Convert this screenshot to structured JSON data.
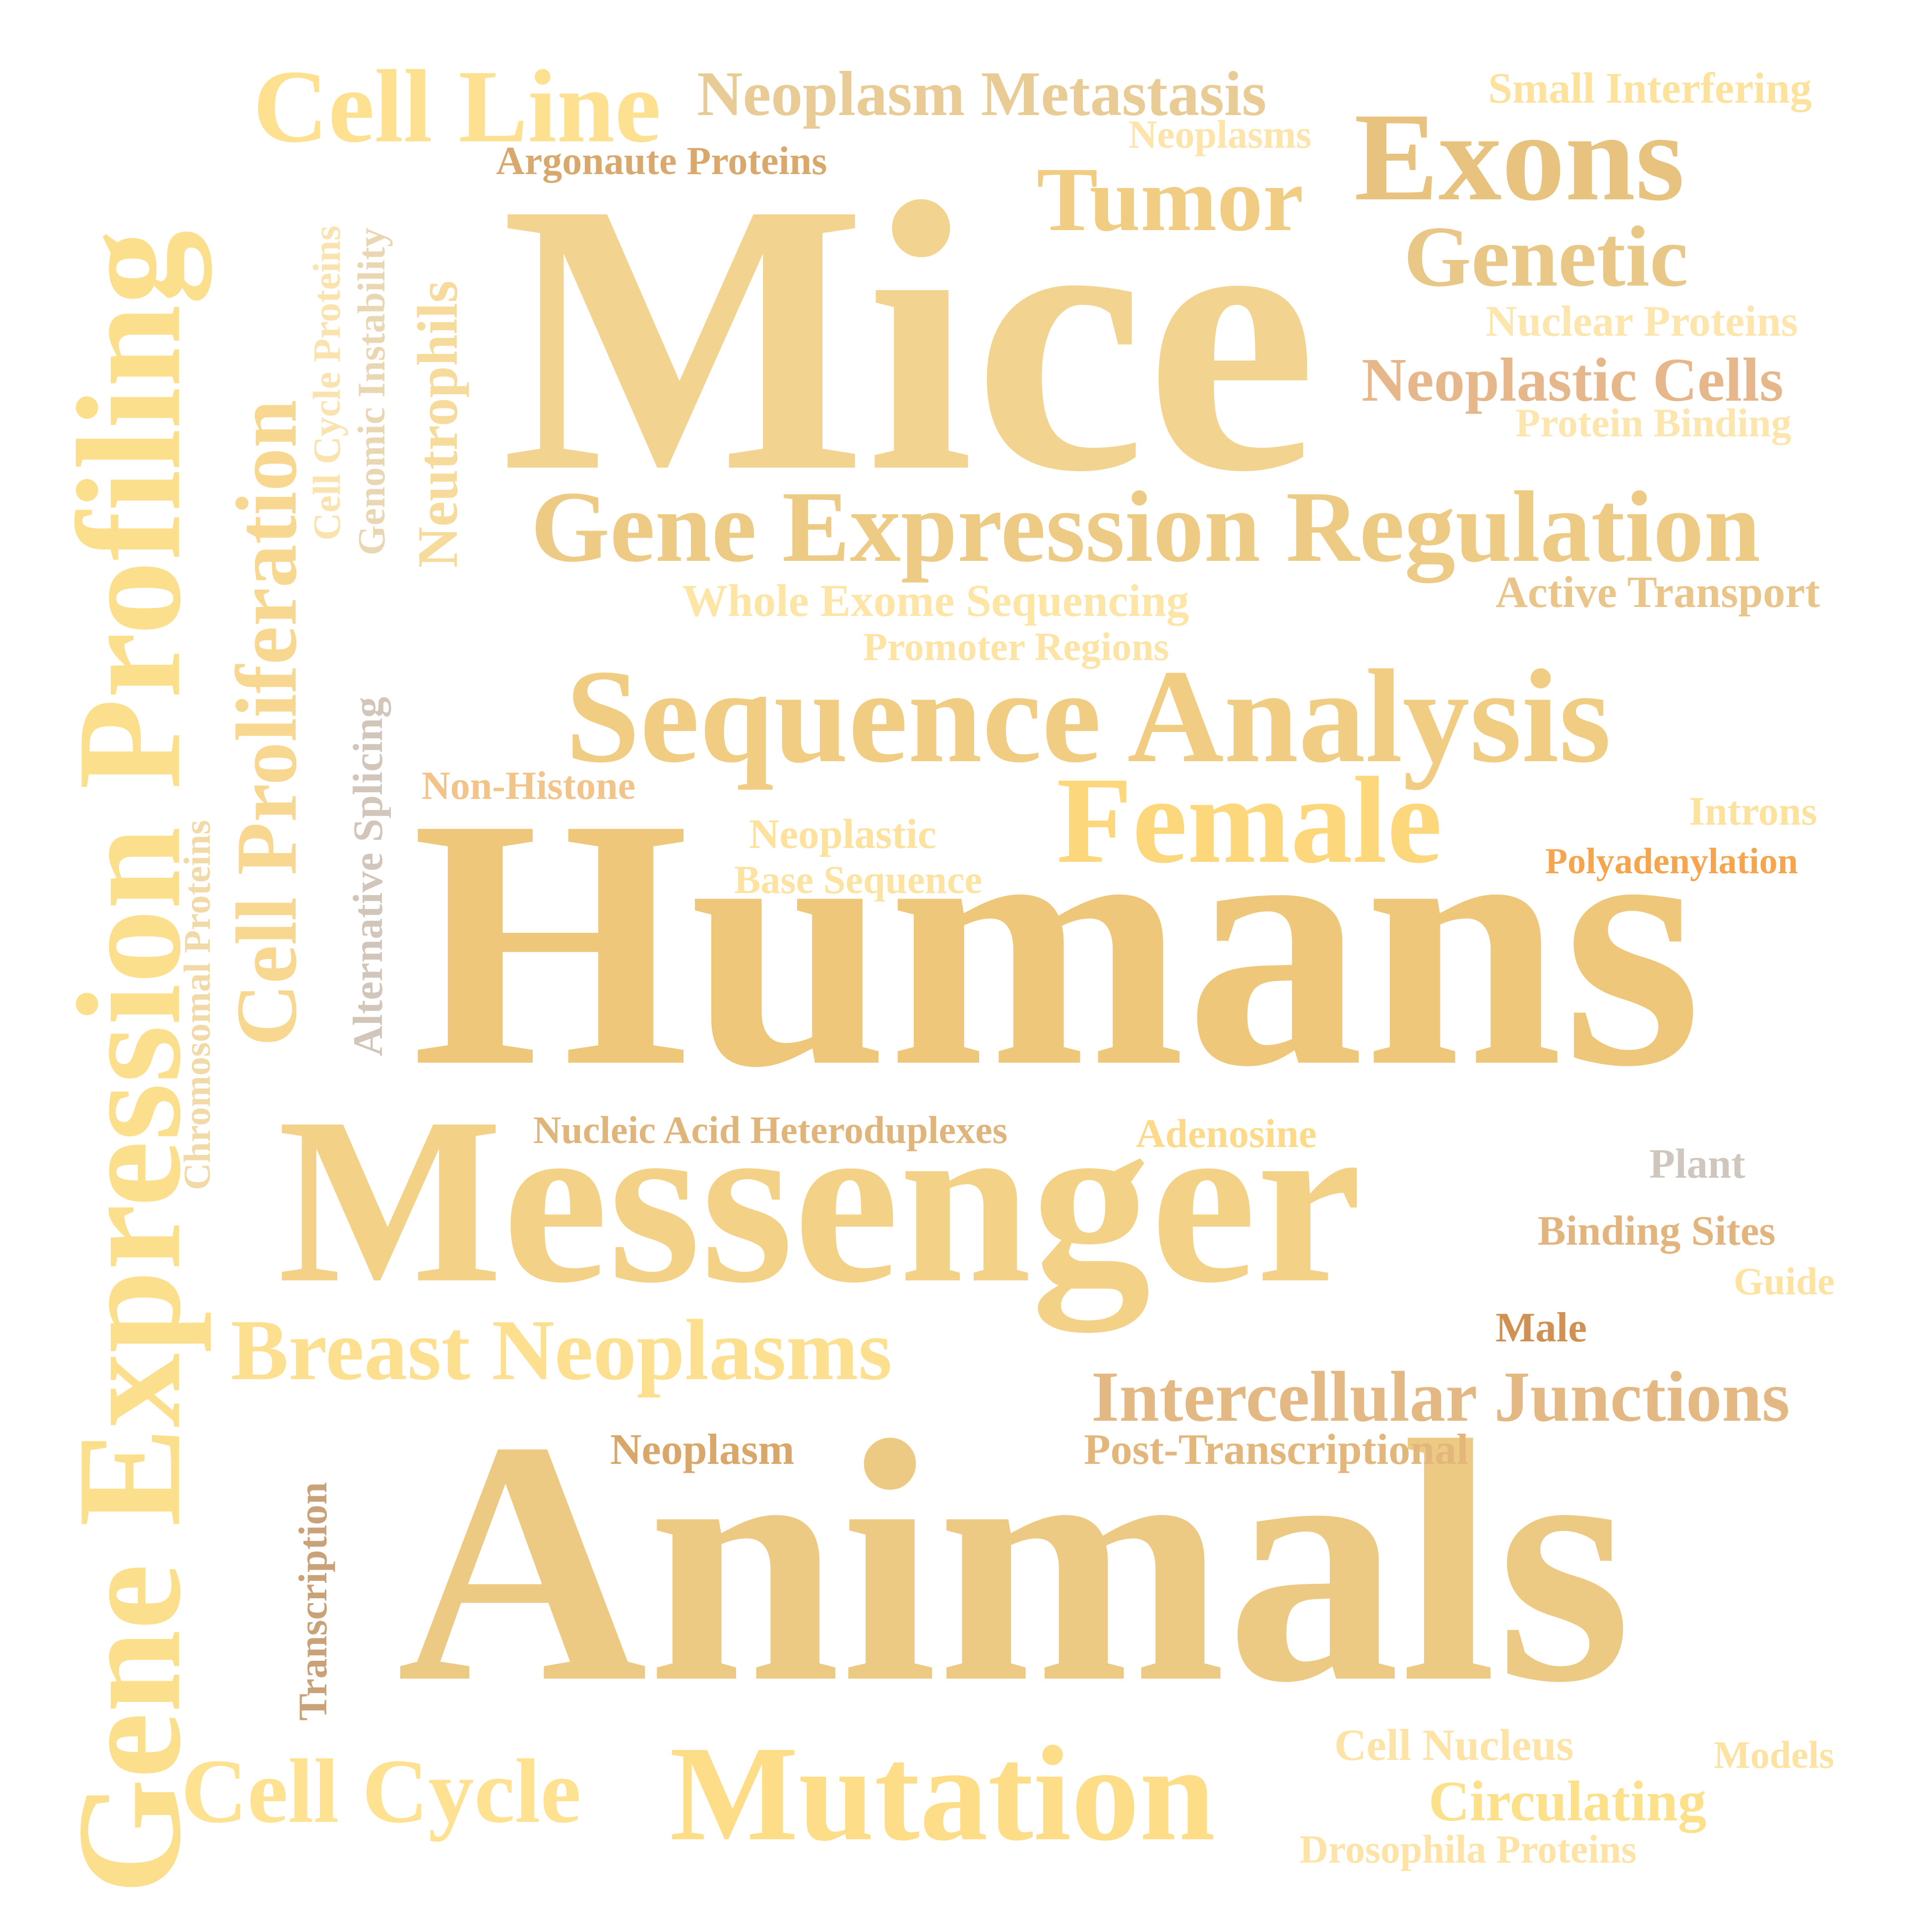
{
  "words": [
    {
      "text": "Mice",
      "color": "#f2d38f"
    },
    {
      "text": "Humans",
      "color": "#eec77a"
    },
    {
      "text": "Animals",
      "color": "#edca83"
    },
    {
      "text": "Messenger",
      "color": "#f3d288"
    },
    {
      "text": "Gene Expression Profiling",
      "color": "#fbdf8c"
    },
    {
      "text": "Sequence Analysis",
      "color": "#f0cd82"
    },
    {
      "text": "Gene Expression Regulation",
      "color": "#edcb84"
    },
    {
      "text": "Exons",
      "color": "#e7c37f"
    },
    {
      "text": "Female",
      "color": "#fdd77c"
    },
    {
      "text": "Mutation",
      "color": "#fedd88"
    },
    {
      "text": "Cell Line",
      "color": "#fde090"
    },
    {
      "text": "Cell Proliferation",
      "color": "#f8d791"
    },
    {
      "text": "Tumor",
      "color": "#f1cd83"
    },
    {
      "text": "Genetic",
      "color": "#e9c787"
    },
    {
      "text": "Breast Neoplasms",
      "color": "#fde08f"
    },
    {
      "text": "Cell Cycle",
      "color": "#fee291"
    },
    {
      "text": "Neoplasm Metastasis",
      "color": "#e9cb95"
    },
    {
      "text": "Intercellular Junctions",
      "color": "#e3b882"
    },
    {
      "text": "Neoplastic Cells",
      "color": "#e6b78a"
    },
    {
      "text": "Neutrophils",
      "color": "#f7db9c"
    },
    {
      "text": "Circulating",
      "color": "#fde08a"
    },
    {
      "text": "Small Interfering",
      "color": "#fde29e"
    },
    {
      "text": "Nuclear Proteins",
      "color": "#fde6ae"
    },
    {
      "text": "Protein Binding",
      "color": "#fde5ae"
    },
    {
      "text": "Active Transport",
      "color": "#e9c58a"
    },
    {
      "text": "Whole Exome Sequencing",
      "color": "#fde5a6"
    },
    {
      "text": "Promoter Regions",
      "color": "#fde3a4"
    },
    {
      "text": "Argonaute Proteins",
      "color": "#d8a86c"
    },
    {
      "text": "Neoplasms",
      "color": "#fde4aa"
    },
    {
      "text": "Cell Cycle Proteins",
      "color": "#fbe3b0"
    },
    {
      "text": "Genomic Instability",
      "color": "#e9d6b2"
    },
    {
      "text": "Alternative Splicing",
      "color": "#d2c6bb"
    },
    {
      "text": "Chromosomal Proteins",
      "color": "#f1d9a8"
    },
    {
      "text": "Non-Histone",
      "color": "#f2c48a"
    },
    {
      "text": "Neoplastic",
      "color": "#fde29e"
    },
    {
      "text": "Base Sequence",
      "color": "#fde3a1"
    },
    {
      "text": "Introns",
      "color": "#fde29e"
    },
    {
      "text": "Polyadenylation",
      "color": "#f4a54d"
    },
    {
      "text": "Nucleic Acid Heteroduplexes",
      "color": "#e0b57c"
    },
    {
      "text": "Adenosine",
      "color": "#fdd98a"
    },
    {
      "text": "Plant",
      "color": "#cfc6bd"
    },
    {
      "text": "Binding Sites",
      "color": "#e2b57e"
    },
    {
      "text": "Guide",
      "color": "#fde2a0"
    },
    {
      "text": "Male",
      "color": "#d09154"
    },
    {
      "text": "Neoplasm",
      "color": "#d9a769"
    },
    {
      "text": "Post-Transcriptional",
      "color": "#e3b77c"
    },
    {
      "text": "Transcription",
      "color": "#c9a27a"
    },
    {
      "text": "Cell Nucleus",
      "color": "#fde3a5"
    },
    {
      "text": "Models",
      "color": "#fde3a2"
    },
    {
      "text": "Drosophila Proteins",
      "color": "#fde3a6"
    }
  ]
}
